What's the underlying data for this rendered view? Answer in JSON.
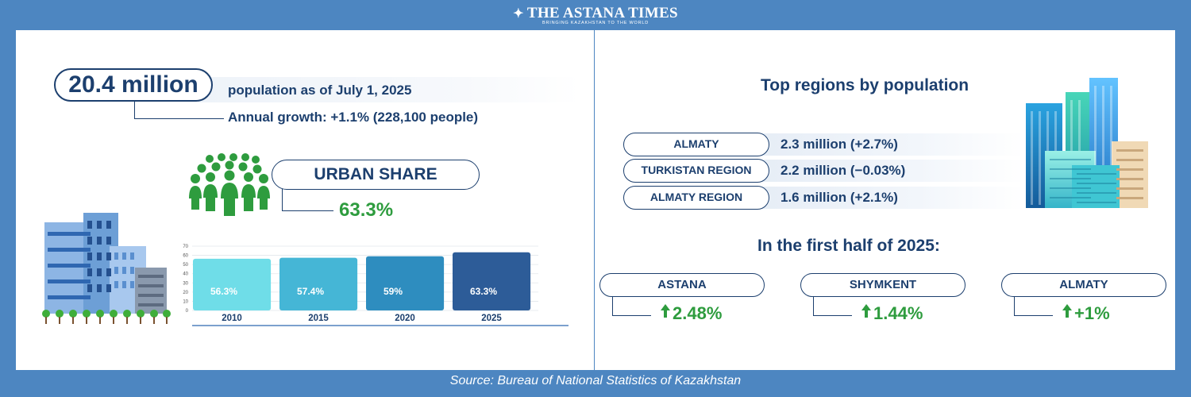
{
  "header": {
    "brand": "THE ASTANA TIMES",
    "tagline": "BRINGING KAZAKHSTAN TO THE WORLD",
    "logo_icon": "bird-icon"
  },
  "population": {
    "headline": "20.4 million",
    "caption": "population as of July 1, 2025",
    "growth": "Annual growth: +1.1% (228,100 people)"
  },
  "urban": {
    "label": "URBAN SHARE",
    "value": "63.3%",
    "icon": "people-group-icon"
  },
  "chart_data": {
    "type": "bar",
    "categories": [
      "2010",
      "2015",
      "2020",
      "2025"
    ],
    "values": [
      56.3,
      57.4,
      59,
      63.3
    ],
    "value_labels": [
      "56.3%",
      "57.4%",
      "59%",
      "63.3%"
    ],
    "ylim": [
      0,
      70
    ],
    "yticks": [
      0,
      10,
      20,
      30,
      40,
      50,
      60,
      70
    ],
    "grid": true,
    "colors": [
      "#6fdde8",
      "#45b6d6",
      "#2e8dbf",
      "#2d5c98"
    ]
  },
  "regions": {
    "title": "Top regions by population",
    "items": [
      {
        "name": "ALMATY",
        "value": "2.3 million (+2.7%)"
      },
      {
        "name": "TURKISTAN REGION",
        "value": "2.2 million (−0.03%)"
      },
      {
        "name": "ALMATY REGION",
        "value": "1.6 million (+2.1%)"
      }
    ]
  },
  "half_year": {
    "title": "In the first half of 2025:",
    "cities": [
      {
        "name": "ASTANA",
        "value": "2.48%"
      },
      {
        "name": "SHYMKENT",
        "value": "1.44%"
      },
      {
        "name": "ALMATY",
        "value": "+1%"
      }
    ]
  },
  "footer": {
    "source": "Source: Bureau of National Statistics of Kazakhstan"
  },
  "colors": {
    "frame": "#4d86c1",
    "navy": "#1c3f6e",
    "green": "#2e9c3e"
  }
}
